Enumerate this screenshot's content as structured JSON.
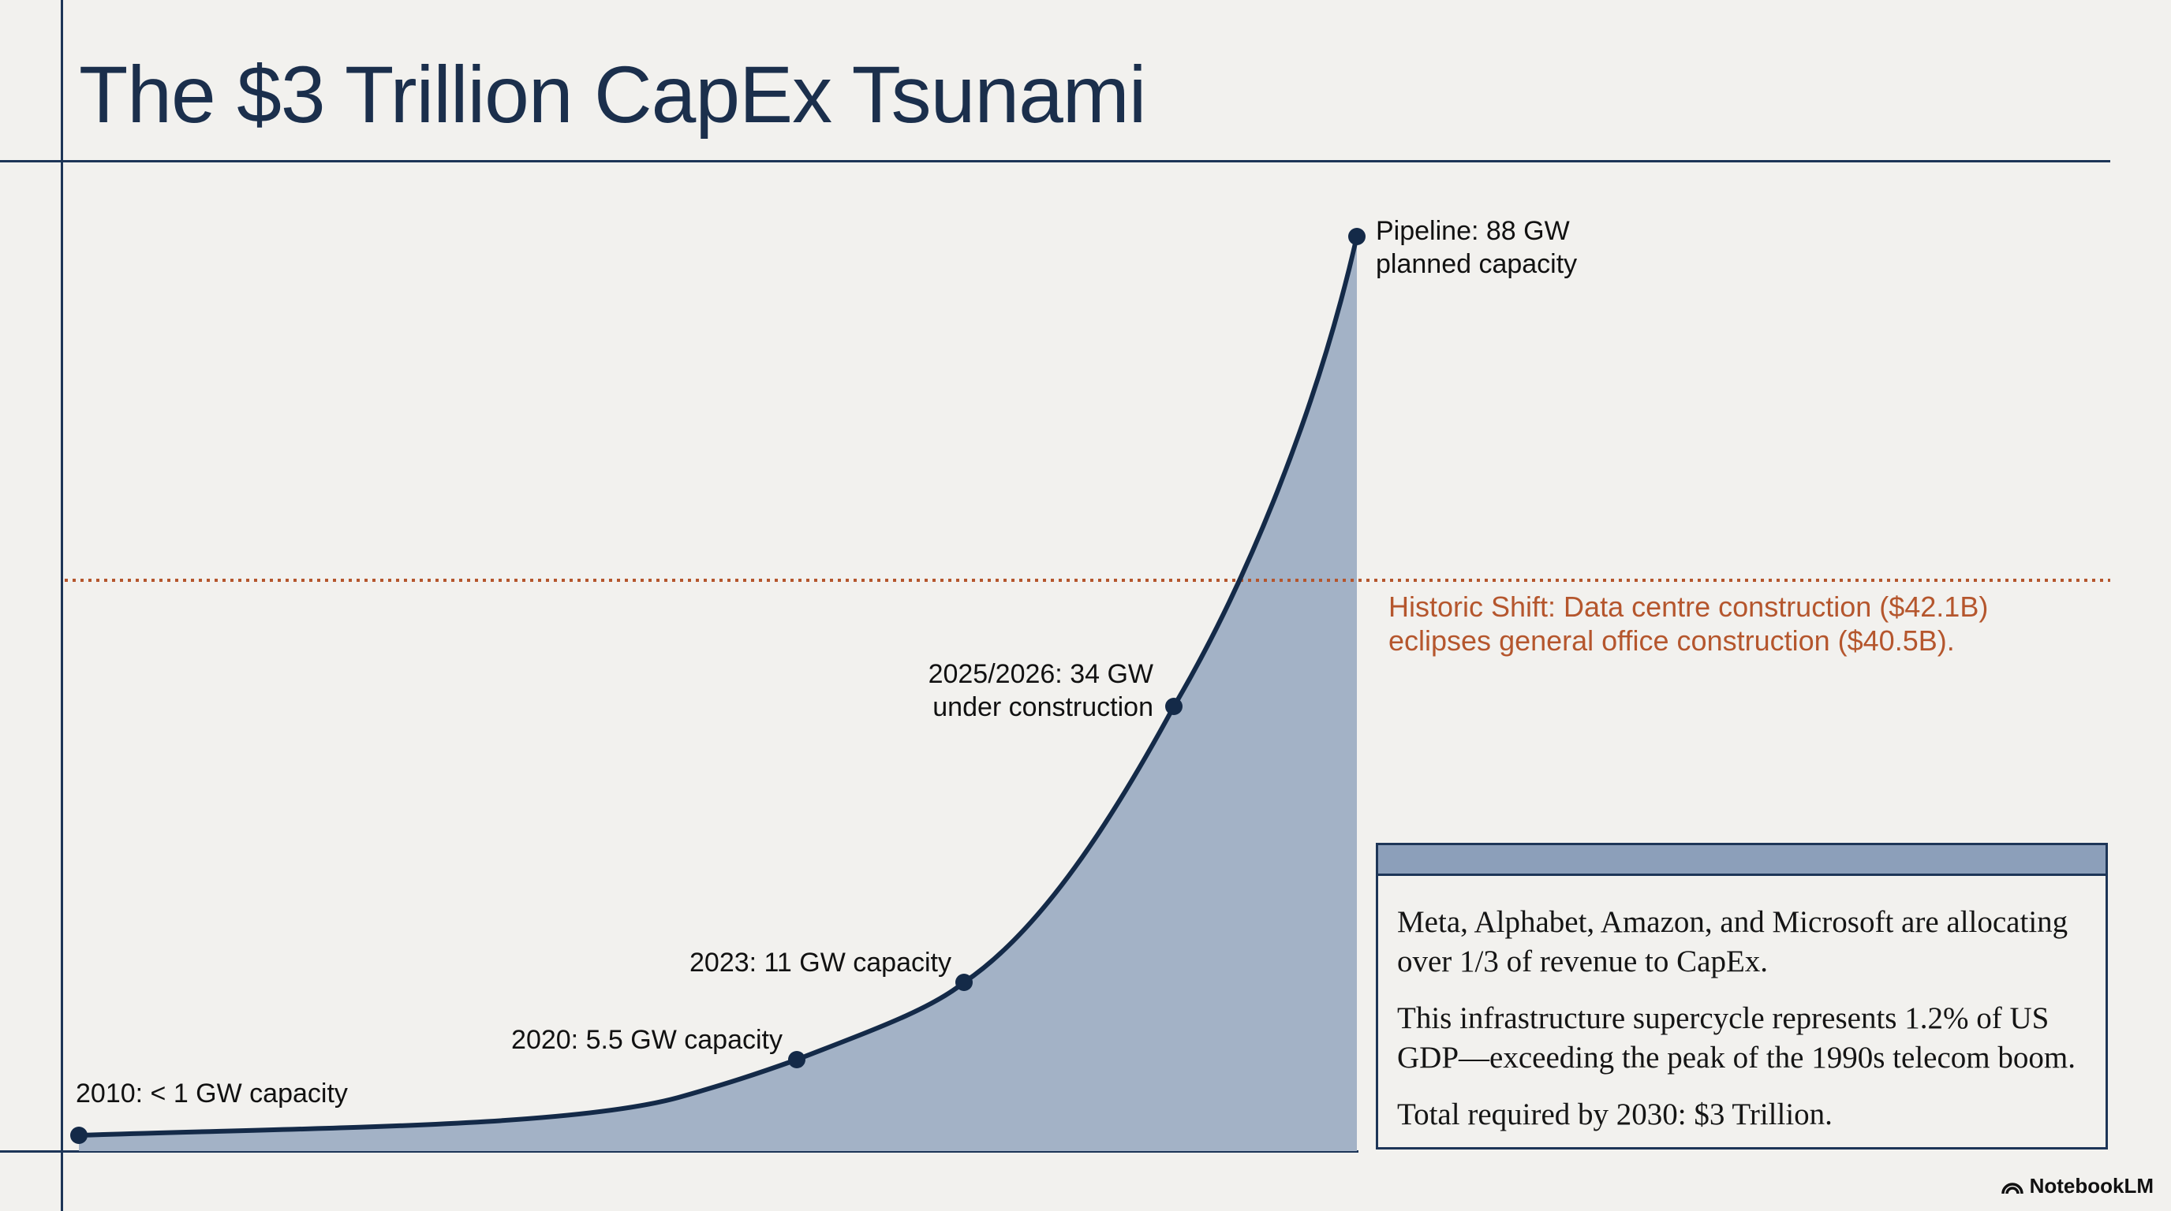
{
  "title": "The $3 Trillion CapEx Tsunami",
  "annotation": {
    "line1": "Historic Shift: Data centre construction ($42.1B)",
    "line2": "eclipses general office construction ($40.5B).",
    "color": "#b5562d"
  },
  "info_box": {
    "p1": "Meta, Alphabet, Amazon, and Microsoft are allocating over 1/3 of revenue to CapEx.",
    "p2": "This infrastructure supercycle represents 1.2% of US GDP—exceeding the peak of the 1990s telecom boom.",
    "p3": "Total required by 2030: $3 Trillion."
  },
  "brand": {
    "name": "NotebookLM",
    "icon": "notebooklm-logo-icon"
  },
  "chart_data": {
    "type": "area",
    "title": "The $3 Trillion CapEx Tsunami",
    "xlabel": "",
    "ylabel": "",
    "grid": false,
    "legend": "none",
    "fill_color": "#a3b2c6",
    "line_color": "#142a48",
    "points": [
      {
        "label_lines": [
          "2010: < 1 GW capacity"
        ],
        "value_gw": 0.8
      },
      {
        "label_lines": [
          "2020: 5.5 GW capacity"
        ],
        "value_gw": 5.5
      },
      {
        "label_lines": [
          "2023: 11 GW capacity"
        ],
        "value_gw": 11
      },
      {
        "label_lines": [
          "2025/2026: 34 GW",
          "under construction"
        ],
        "value_gw": 34
      },
      {
        "label_lines": [
          "Pipeline: 88 GW",
          "planned capacity"
        ],
        "value_gw": 88
      }
    ]
  }
}
